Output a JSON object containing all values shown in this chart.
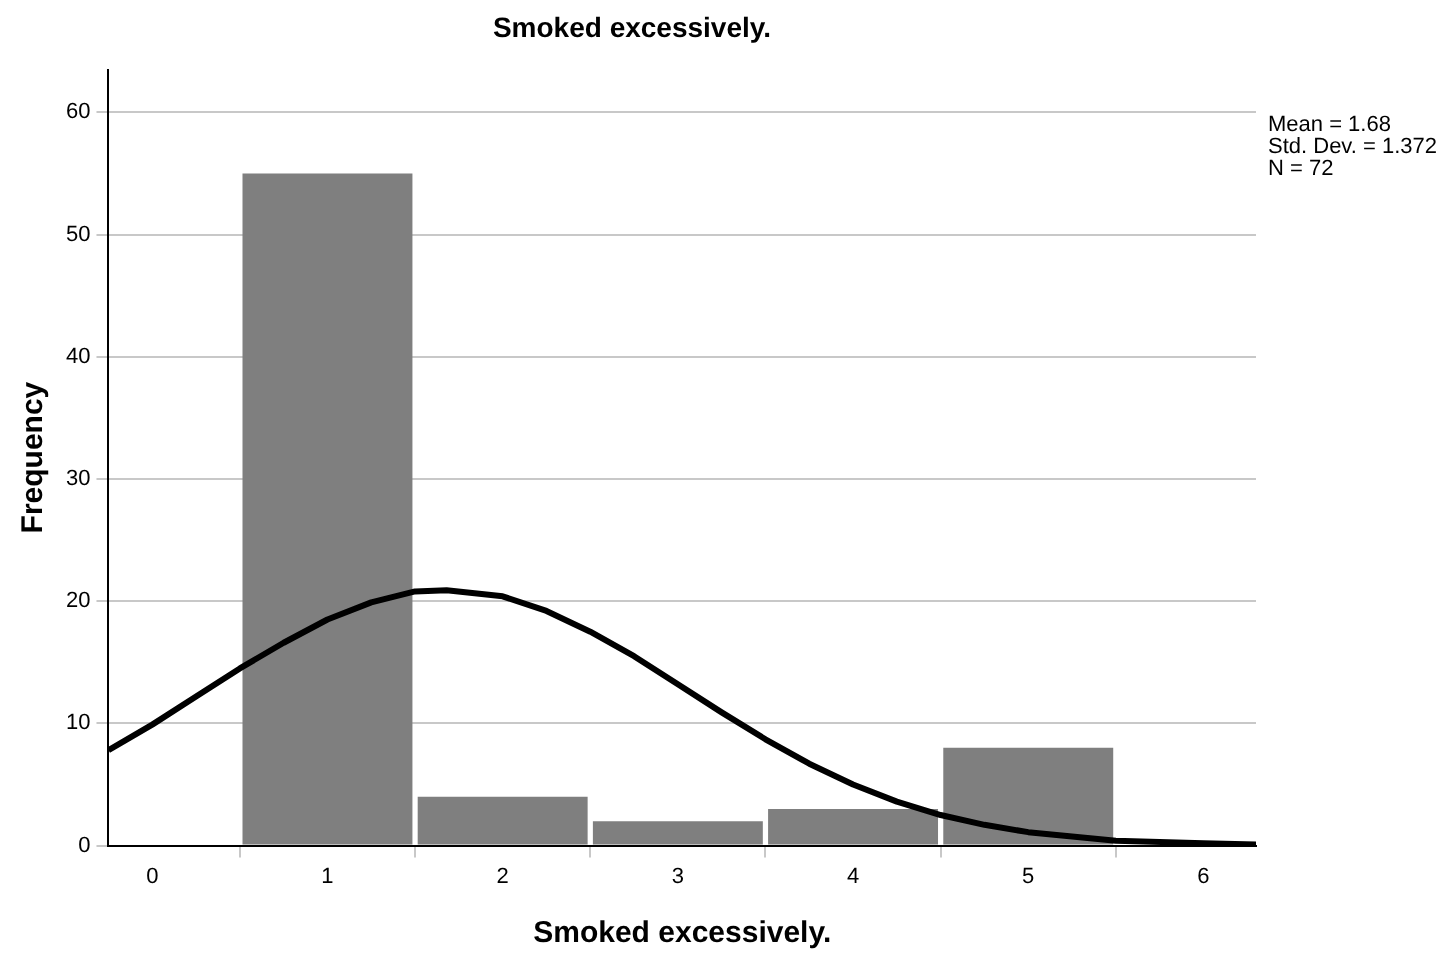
{
  "chart_data": {
    "type": "histogram",
    "title": "Smoked excessively.",
    "xlabel": "Smoked excessively.",
    "ylabel": "Frequency",
    "bins": [
      0.5,
      1.5,
      2.5,
      3.5,
      4.5,
      5.5
    ],
    "values": [
      55,
      4,
      2,
      3,
      8
    ],
    "color": "#7f7f7f",
    "series": [
      {
        "type": "line",
        "color": "#000000",
        "x": [
          -0.25,
          0,
          0.25,
          0.5,
          0.75,
          1,
          1.25,
          1.5,
          1.68,
          2,
          2.25,
          2.5,
          2.75,
          3,
          3.25,
          3.5,
          3.75,
          4,
          4.25,
          4.5,
          4.75,
          5,
          5.5,
          6,
          6.3
        ],
        "values": [
          7.8,
          9.9,
          12.2,
          14.5,
          16.6,
          18.5,
          19.9,
          20.8,
          20.9,
          20.4,
          19.2,
          17.5,
          15.5,
          13.2,
          10.9,
          8.7,
          6.7,
          5.0,
          3.6,
          2.5,
          1.7,
          1.1,
          0.4,
          0.2,
          0.1
        ]
      }
    ],
    "xlim": [
      -0.25,
      6.3
    ],
    "xticks": [
      0,
      1,
      2,
      3,
      4,
      5,
      6
    ],
    "ylim": [
      0,
      63.5
    ],
    "yticks": [
      0,
      10,
      20,
      30,
      40,
      50,
      60
    ],
    "grid": "y",
    "legend": false,
    "marker": "none",
    "line_style": "solid",
    "annotations": [
      "Mean = 1.68",
      "Std. Dev. = 1.372",
      "N = 72"
    ]
  }
}
